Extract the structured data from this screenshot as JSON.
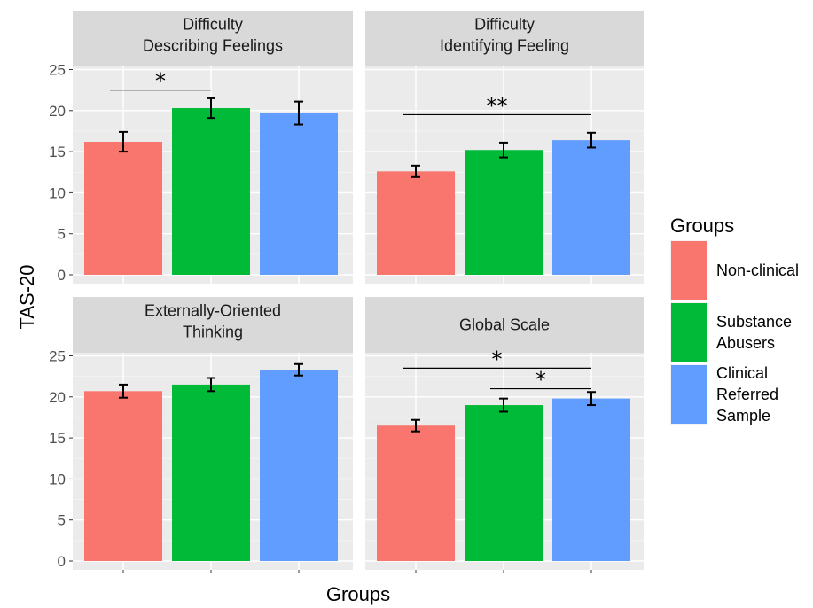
{
  "chart_data": {
    "type": "bar",
    "xlabel": "Groups",
    "ylabel": "TAS-20",
    "ylim": [
      0,
      27
    ],
    "yticks": [
      "0",
      "5",
      "10",
      "15",
      "20",
      "25"
    ],
    "grid": true,
    "legend": {
      "title": "Groups",
      "position": "right",
      "entries": [
        {
          "label": "Non-clinical",
          "color": "#F8766D"
        },
        {
          "label": "Substance Abusers",
          "color": "#00BA38"
        },
        {
          "label": "Clinical Referred Sample",
          "color": "#619CFF"
        }
      ]
    },
    "categories": [
      "Non-clinical",
      "Substance Abusers",
      "Clinical Referred Sample"
    ],
    "colors": [
      "#F8766D",
      "#00BA38",
      "#619CFF"
    ],
    "panels": [
      {
        "title_lines": [
          "Difficulty",
          "Describing Feelings"
        ],
        "values": [
          16.2,
          20.3,
          19.7
        ],
        "errors": [
          1.2,
          1.2,
          1.4
        ],
        "significance": [
          {
            "from": 0,
            "to": 1,
            "y": 22.5,
            "label": "*"
          }
        ]
      },
      {
        "title_lines": [
          "Difficulty",
          "Identifying Feeling"
        ],
        "values": [
          12.6,
          15.2,
          16.4
        ],
        "errors": [
          0.7,
          0.9,
          0.9
        ],
        "significance": [
          {
            "from": 0,
            "to": 2,
            "y": 19.5,
            "label": "**"
          }
        ]
      },
      {
        "title_lines": [
          "Externally-Oriented",
          "Thinking"
        ],
        "values": [
          20.7,
          21.5,
          23.3
        ],
        "errors": [
          0.8,
          0.8,
          0.7
        ],
        "significance": []
      },
      {
        "title_lines": [
          "Global Scale"
        ],
        "values": [
          16.5,
          19.0,
          19.8
        ],
        "errors": [
          0.7,
          0.8,
          0.8
        ],
        "significance": [
          {
            "from": 0,
            "to": 2,
            "y": 23.5,
            "label": "*"
          },
          {
            "from": 1,
            "to": 2,
            "y": 21.0,
            "label": "*"
          }
        ]
      }
    ]
  }
}
